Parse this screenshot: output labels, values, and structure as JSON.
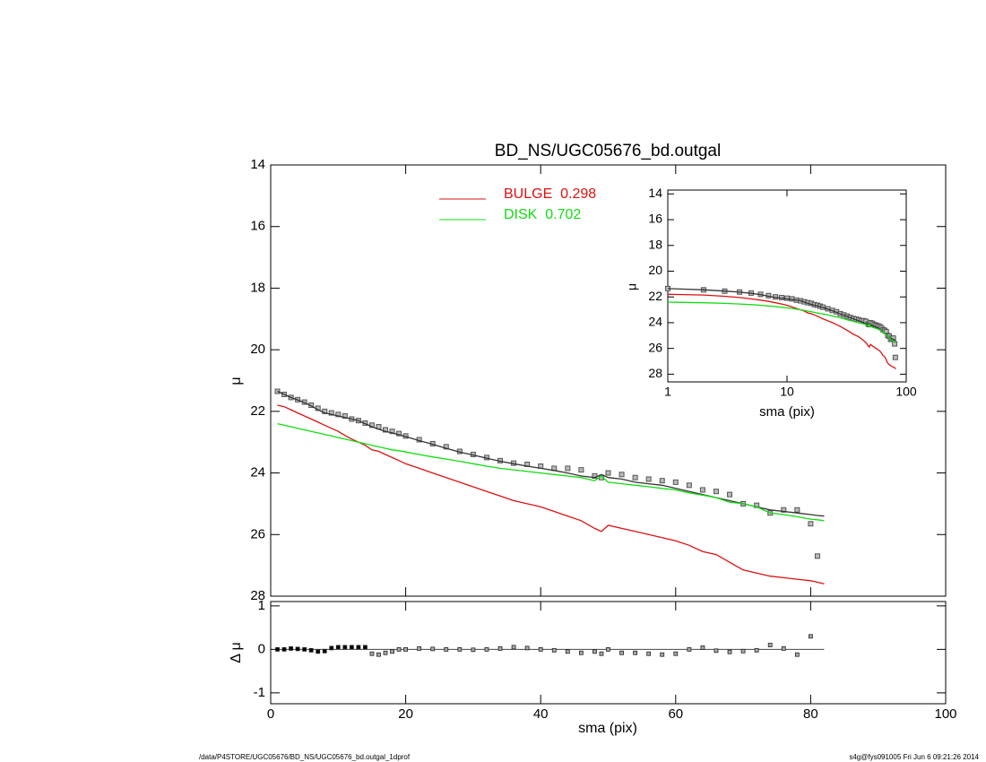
{
  "chart_data": [
    {
      "type": "line",
      "title": "BD_NS/UGC05676_bd.outgal",
      "y_label": "μ",
      "x": [
        1,
        2,
        3,
        4,
        5,
        6,
        7,
        8,
        9,
        10,
        11,
        12,
        13,
        14,
        15,
        16,
        17,
        18,
        19,
        20,
        22,
        24,
        26,
        28,
        30,
        32,
        34,
        36,
        38,
        40,
        42,
        44,
        46,
        48,
        49,
        50,
        52,
        54,
        56,
        58,
        60,
        62,
        64,
        66,
        68,
        70,
        72,
        74,
        76,
        78,
        80,
        81,
        82
      ],
      "xlim": [
        0,
        100
      ],
      "ylim": [
        28,
        14
      ],
      "yticks": [
        14,
        16,
        18,
        20,
        22,
        24,
        26,
        28
      ],
      "series": [
        {
          "style": "markers",
          "color": "#555555",
          "values": [
            21.35,
            21.45,
            21.55,
            21.62,
            21.7,
            21.8,
            21.9,
            22.0,
            22.05,
            22.1,
            22.15,
            22.25,
            22.3,
            22.38,
            22.45,
            22.5,
            22.6,
            22.65,
            22.72,
            22.8,
            22.92,
            23.05,
            23.15,
            23.3,
            23.4,
            23.5,
            23.6,
            23.68,
            23.72,
            23.78,
            23.85,
            23.85,
            23.9,
            24.1,
            24.15,
            24.0,
            24.05,
            24.15,
            24.2,
            24.25,
            24.3,
            24.4,
            24.55,
            24.6,
            24.7,
            25.0,
            25.05,
            25.3,
            25.2,
            25.2,
            25.65,
            26.7,
            null
          ]
        },
        {
          "style": "line",
          "color": "#333333",
          "values": [
            21.35,
            21.45,
            21.55,
            21.63,
            21.72,
            21.82,
            21.95,
            22.05,
            22.1,
            22.15,
            22.2,
            22.25,
            22.3,
            22.4,
            22.5,
            22.58,
            22.65,
            22.7,
            22.76,
            22.82,
            22.95,
            23.07,
            23.2,
            23.32,
            23.42,
            23.52,
            23.62,
            23.7,
            23.78,
            23.85,
            23.92,
            24.0,
            24.1,
            24.15,
            24.05,
            24.15,
            24.2,
            24.3,
            24.35,
            24.4,
            24.5,
            24.6,
            24.7,
            24.8,
            24.9,
            25.0,
            25.1,
            25.2,
            25.25,
            25.3,
            25.35,
            25.38,
            25.4
          ]
        },
        {
          "name": "BULGE  0.298",
          "style": "line",
          "color": "#dd1111",
          "values": [
            21.8,
            21.85,
            21.95,
            22.05,
            22.15,
            22.25,
            22.35,
            22.45,
            22.55,
            22.65,
            22.78,
            22.9,
            23.0,
            23.1,
            23.25,
            23.3,
            23.4,
            23.5,
            23.6,
            23.7,
            23.85,
            24.0,
            24.15,
            24.3,
            24.45,
            24.6,
            24.75,
            24.9,
            25.0,
            25.1,
            25.25,
            25.4,
            25.55,
            25.8,
            25.9,
            25.7,
            25.8,
            25.9,
            26.0,
            26.1,
            26.2,
            26.35,
            26.55,
            26.65,
            26.9,
            27.15,
            27.25,
            27.35,
            27.4,
            27.45,
            27.5,
            27.55,
            27.6
          ]
        },
        {
          "name": "DISK  0.702",
          "style": "line",
          "color": "#11dd11",
          "values": [
            22.4,
            22.45,
            22.5,
            22.55,
            22.6,
            22.65,
            22.7,
            22.75,
            22.8,
            22.85,
            22.9,
            22.95,
            23.0,
            23.05,
            23.1,
            23.15,
            23.2,
            23.25,
            23.28,
            23.32,
            23.4,
            23.48,
            23.55,
            23.62,
            23.7,
            23.78,
            23.85,
            23.9,
            23.95,
            24.0,
            24.05,
            24.1,
            24.15,
            24.25,
            24.1,
            24.3,
            24.35,
            24.4,
            24.45,
            24.5,
            24.55,
            24.65,
            24.72,
            24.8,
            24.95,
            25.0,
            25.1,
            25.3,
            25.35,
            25.42,
            25.5,
            25.52,
            25.55
          ]
        }
      ]
    },
    {
      "type": "scatter",
      "x_label": "sma (pix)",
      "y_label": "Δ μ",
      "x": [
        1,
        2,
        3,
        4,
        5,
        6,
        7,
        8,
        9,
        10,
        11,
        12,
        13,
        14,
        15,
        16,
        17,
        18,
        19,
        20,
        22,
        24,
        26,
        28,
        30,
        32,
        34,
        36,
        38,
        40,
        42,
        44,
        46,
        48,
        49,
        50,
        52,
        54,
        56,
        58,
        60,
        62,
        64,
        66,
        68,
        70,
        72,
        74,
        76,
        78,
        80
      ],
      "values": [
        0,
        0,
        0.02,
        0.01,
        0,
        -0.02,
        -0.05,
        -0.04,
        0.03,
        0.05,
        0.05,
        0.05,
        0.05,
        0.05,
        -0.1,
        -0.12,
        -0.08,
        -0.05,
        0,
        0,
        0.02,
        0.01,
        0,
        0,
        -0.01,
        0,
        0.02,
        0.05,
        0.03,
        0,
        -0.02,
        -0.05,
        -0.08,
        -0.05,
        -0.1,
        0,
        -0.08,
        -0.08,
        -0.1,
        -0.12,
        -0.1,
        0,
        0.04,
        -0.03,
        -0.06,
        -0.04,
        -0.02,
        0.1,
        0.02,
        -0.12,
        0.3
      ],
      "xlim": [
        0,
        100
      ],
      "xticks": [
        0,
        20,
        40,
        60,
        80,
        100
      ],
      "ylim": [
        -1.25,
        1.1
      ],
      "yticks": [
        1,
        0,
        -1
      ]
    },
    {
      "type": "inset",
      "x_label": "sma (pix)",
      "y_label": "μ",
      "x_scale": "log",
      "xlim": [
        1,
        100
      ],
      "xticks": [
        1,
        10,
        100
      ],
      "ylim": [
        28.6,
        13.7
      ],
      "yticks": [
        14,
        16,
        18,
        20,
        22,
        24,
        26,
        28
      ]
    }
  ],
  "footer": {
    "left": "/data/P4STORE/UGC05676/BD_NS/UGC05676_bd.outgal_1dprof",
    "right": "s4g@fys091005  Fri Jun  6 09:21:26 2014"
  }
}
